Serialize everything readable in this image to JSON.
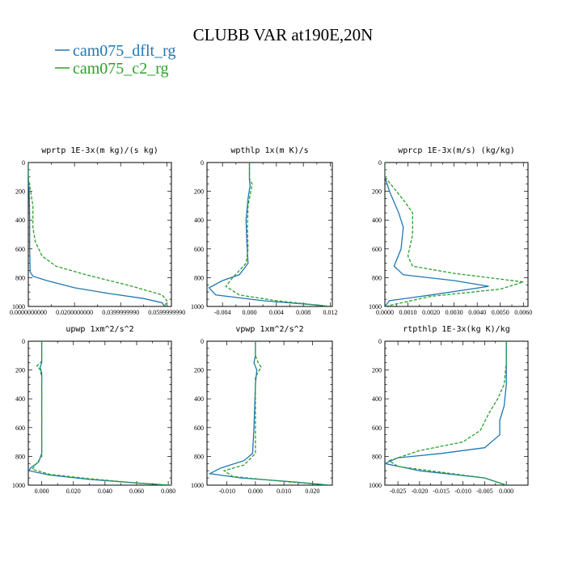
{
  "figure": {
    "title": "CLUBB VAR at190E,20N",
    "legend": [
      {
        "label": "cam075_dflt_rg",
        "color": "#1f77b4",
        "dash": "solid"
      },
      {
        "label": "cam075_c2_rg",
        "color": "#2ca02c",
        "dash": "solid"
      }
    ]
  },
  "chart_data": [
    {
      "type": "line",
      "title": "wprtp  1E-3x(m kg)/(s kg)",
      "xlim": [
        0,
        0.062
      ],
      "ylim": [
        0,
        1000
      ],
      "x_ticks": [
        {
          "v": 0,
          "label": "0.0000000000"
        },
        {
          "v": 0.02,
          "label": "0.0200000000"
        },
        {
          "v": 0.04,
          "label": "0.0399999990"
        },
        {
          "v": 0.06,
          "label": "0.0599999990"
        }
      ],
      "y_ticks": [
        0,
        200,
        400,
        600,
        800,
        1000
      ],
      "series": [
        {
          "name": "cam075_dflt_rg",
          "color": "#1f77b4",
          "dashed": false,
          "points": [
            [
              0,
              0
            ],
            [
              0,
              100
            ],
            [
              0.0004,
              200
            ],
            [
              0.0006,
              400
            ],
            [
              0.0006,
              600
            ],
            [
              0.0008,
              760
            ],
            [
              0.002,
              790
            ],
            [
              0.008,
              820
            ],
            [
              0.02,
              870
            ],
            [
              0.035,
              910
            ],
            [
              0.05,
              945
            ],
            [
              0.058,
              975
            ],
            [
              0.059,
              1000
            ]
          ]
        },
        {
          "name": "cam075_c2_rg",
          "color": "#2ca02c",
          "dashed": true,
          "points": [
            [
              0,
              0
            ],
            [
              0,
              100
            ],
            [
              0.0005,
              150
            ],
            [
              0.001,
              200
            ],
            [
              0.002,
              300
            ],
            [
              0.002,
              450
            ],
            [
              0.003,
              550
            ],
            [
              0.006,
              650
            ],
            [
              0.012,
              720
            ],
            [
              0.025,
              780
            ],
            [
              0.045,
              860
            ],
            [
              0.058,
              920
            ],
            [
              0.06,
              960
            ],
            [
              0.059,
              1000
            ]
          ]
        }
      ]
    },
    {
      "type": "line",
      "title": "wpthlp  1x(m K)/s",
      "xlim": [
        -0.0063,
        0.0123
      ],
      "ylim": [
        0,
        1000
      ],
      "x_ticks": [
        {
          "v": -0.004,
          "label": "-0.004"
        },
        {
          "v": 0,
          "label": "0.000"
        },
        {
          "v": 0.004,
          "label": "0.004"
        },
        {
          "v": 0.008,
          "label": "0.008"
        },
        {
          "v": 0.012,
          "label": "0.012"
        }
      ],
      "y_ticks": [
        0,
        200,
        400,
        600,
        800,
        1000
      ],
      "series": [
        {
          "name": "cam075_dflt_rg",
          "color": "#1f77b4",
          "dashed": false,
          "points": [
            [
              0,
              0
            ],
            [
              0,
              120
            ],
            [
              0.0001,
              160
            ],
            [
              -0.0002,
              250
            ],
            [
              -0.0005,
              400
            ],
            [
              -0.0004,
              550
            ],
            [
              -0.0002,
              700
            ],
            [
              -0.0015,
              780
            ],
            [
              -0.004,
              820
            ],
            [
              -0.006,
              870
            ],
            [
              -0.005,
              920
            ],
            [
              0.002,
              960
            ],
            [
              0.01,
              990
            ],
            [
              0.012,
              1000
            ]
          ]
        },
        {
          "name": "cam075_c2_rg",
          "color": "#2ca02c",
          "dashed": true,
          "points": [
            [
              0,
              0
            ],
            [
              0,
              110
            ],
            [
              0.0004,
              150
            ],
            [
              0.0002,
              200
            ],
            [
              -0.0002,
              300
            ],
            [
              -0.0003,
              450
            ],
            [
              -0.0002,
              600
            ],
            [
              -0.0005,
              700
            ],
            [
              -0.0025,
              800
            ],
            [
              -0.0035,
              860
            ],
            [
              -0.0015,
              920
            ],
            [
              0.004,
              960
            ],
            [
              0.01,
              990
            ],
            [
              0.012,
              1000
            ]
          ]
        }
      ]
    },
    {
      "type": "line",
      "title": "wprcp  1E-3x(m/s) (kg/kg)",
      "xlim": [
        0,
        0.0062
      ],
      "ylim": [
        0,
        1000
      ],
      "x_ticks": [
        {
          "v": 0,
          "label": "0.0000"
        },
        {
          "v": 0.001,
          "label": "0.0010"
        },
        {
          "v": 0.002,
          "label": "0.0020"
        },
        {
          "v": 0.003,
          "label": "0.0030"
        },
        {
          "v": 0.004,
          "label": "0.0040"
        },
        {
          "v": 0.005,
          "label": "0.0050"
        },
        {
          "v": 0.006,
          "label": "0.0060"
        }
      ],
      "y_ticks": [
        0,
        200,
        400,
        600,
        800,
        1000
      ],
      "series": [
        {
          "name": "cam075_dflt_rg",
          "color": "#1f77b4",
          "dashed": false,
          "points": [
            [
              0,
              0
            ],
            [
              0,
              100
            ],
            [
              0.0002,
              200
            ],
            [
              0.0006,
              350
            ],
            [
              0.0008,
              450
            ],
            [
              0.0007,
              600
            ],
            [
              0.0004,
              720
            ],
            [
              0.0008,
              780
            ],
            [
              0.003,
              820
            ],
            [
              0.0045,
              860
            ],
            [
              0.002,
              920
            ],
            [
              0.0002,
              960
            ],
            [
              0,
              1000
            ]
          ]
        },
        {
          "name": "cam075_c2_rg",
          "color": "#2ca02c",
          "dashed": true,
          "points": [
            [
              0,
              0
            ],
            [
              0,
              100
            ],
            [
              0.0004,
              180
            ],
            [
              0.0009,
              280
            ],
            [
              0.0012,
              350
            ],
            [
              0.0012,
              500
            ],
            [
              0.001,
              650
            ],
            [
              0.0012,
              720
            ],
            [
              0.003,
              770
            ],
            [
              0.006,
              830
            ],
            [
              0.005,
              880
            ],
            [
              0.002,
              930
            ],
            [
              0,
              1000
            ]
          ]
        }
      ]
    },
    {
      "type": "line",
      "title": "upwp  1xm^2/s^2",
      "xlim": [
        -0.0085,
        0.082
      ],
      "ylim": [
        0,
        1000
      ],
      "x_ticks": [
        {
          "v": 0,
          "label": "0.000"
        },
        {
          "v": 0.02,
          "label": "0.020"
        },
        {
          "v": 0.04,
          "label": "0.040"
        },
        {
          "v": 0.06,
          "label": "0.060"
        },
        {
          "v": 0.08,
          "label": "0.080"
        }
      ],
      "y_ticks": [
        0,
        200,
        400,
        600,
        800,
        1000
      ],
      "series": [
        {
          "name": "cam075_dflt_rg",
          "color": "#1f77b4",
          "dashed": false,
          "points": [
            [
              0,
              0
            ],
            [
              0,
              150
            ],
            [
              -0.001,
              180
            ],
            [
              0,
              220
            ],
            [
              0,
              500
            ],
            [
              0,
              780
            ],
            [
              -0.002,
              840
            ],
            [
              -0.007,
              880
            ],
            [
              -0.008,
              900
            ],
            [
              0.005,
              930
            ],
            [
              0.03,
              960
            ],
            [
              0.06,
              985
            ],
            [
              0.08,
              1000
            ]
          ]
        },
        {
          "name": "cam075_c2_rg",
          "color": "#2ca02c",
          "dashed": true,
          "points": [
            [
              0,
              0
            ],
            [
              0,
              140
            ],
            [
              -0.003,
              170
            ],
            [
              -0.001,
              200
            ],
            [
              0,
              250
            ],
            [
              0,
              500
            ],
            [
              0,
              800
            ],
            [
              -0.004,
              860
            ],
            [
              -0.006,
              890
            ],
            [
              0.005,
              925
            ],
            [
              0.03,
              955
            ],
            [
              0.06,
              985
            ],
            [
              0.082,
              1000
            ]
          ]
        }
      ]
    },
    {
      "type": "line",
      "title": "vpwp  1xm^2/s^2",
      "xlim": [
        -0.017,
        0.027
      ],
      "ylim": [
        0,
        1000
      ],
      "x_ticks": [
        {
          "v": -0.01,
          "label": "-0.010"
        },
        {
          "v": 0,
          "label": "0.000"
        },
        {
          "v": 0.01,
          "label": "0.010"
        },
        {
          "v": 0.02,
          "label": "0.020"
        }
      ],
      "y_ticks": [
        0,
        200,
        400,
        600,
        800,
        1000
      ],
      "series": [
        {
          "name": "cam075_dflt_rg",
          "color": "#1f77b4",
          "dashed": false,
          "points": [
            [
              0,
              0
            ],
            [
              0,
              100
            ],
            [
              -0.0005,
              150
            ],
            [
              0.0005,
              200
            ],
            [
              0,
              300
            ],
            [
              -0.0005,
              600
            ],
            [
              -0.001,
              780
            ],
            [
              -0.004,
              830
            ],
            [
              -0.012,
              880
            ],
            [
              -0.016,
              920
            ],
            [
              -0.005,
              950
            ],
            [
              0.015,
              980
            ],
            [
              0.026,
              1000
            ]
          ]
        },
        {
          "name": "cam075_c2_rg",
          "color": "#2ca02c",
          "dashed": true,
          "points": [
            [
              0,
              0
            ],
            [
              0,
              100
            ],
            [
              0.001,
              150
            ],
            [
              0.002,
              180
            ],
            [
              0,
              250
            ],
            [
              0,
              400
            ],
            [
              0,
              600
            ],
            [
              0,
              780
            ],
            [
              -0.004,
              860
            ],
            [
              -0.011,
              900
            ],
            [
              -0.008,
              940
            ],
            [
              0.01,
              975
            ],
            [
              0.026,
              1000
            ]
          ]
        }
      ]
    },
    {
      "type": "line",
      "title": "rtpthlp  1E-3x(kg K)/kg",
      "xlim": [
        -0.028,
        0.005
      ],
      "ylim": [
        0,
        1000
      ],
      "x_ticks": [
        {
          "v": -0.025,
          "label": "-0.025"
        },
        {
          "v": -0.02,
          "label": "-0.020"
        },
        {
          "v": -0.015,
          "label": "-0.015"
        },
        {
          "v": -0.01,
          "label": "-0.010"
        },
        {
          "v": -0.005,
          "label": "-0.005"
        },
        {
          "v": 0,
          "label": "0.000"
        }
      ],
      "y_ticks": [
        0,
        200,
        400,
        600,
        800,
        1000
      ],
      "series": [
        {
          "name": "cam075_dflt_rg",
          "color": "#1f77b4",
          "dashed": false,
          "points": [
            [
              0,
              0
            ],
            [
              0,
              150
            ],
            [
              0,
              300
            ],
            [
              -0.0005,
              450
            ],
            [
              -0.0015,
              550
            ],
            [
              -0.0015,
              650
            ],
            [
              -0.005,
              740
            ],
            [
              -0.015,
              780
            ],
            [
              -0.025,
              810
            ],
            [
              -0.028,
              850
            ],
            [
              -0.02,
              900
            ],
            [
              -0.005,
              950
            ],
            [
              0,
              1000
            ]
          ]
        },
        {
          "name": "cam075_c2_rg",
          "color": "#2ca02c",
          "dashed": true,
          "points": [
            [
              0,
              0
            ],
            [
              0,
              150
            ],
            [
              -0.0005,
              300
            ],
            [
              -0.002,
              400
            ],
            [
              -0.004,
              500
            ],
            [
              -0.006,
              620
            ],
            [
              -0.01,
              700
            ],
            [
              -0.02,
              760
            ],
            [
              -0.027,
              830
            ],
            [
              -0.025,
              870
            ],
            [
              -0.015,
              910
            ],
            [
              -0.005,
              950
            ],
            [
              0,
              1000
            ]
          ]
        }
      ]
    }
  ]
}
